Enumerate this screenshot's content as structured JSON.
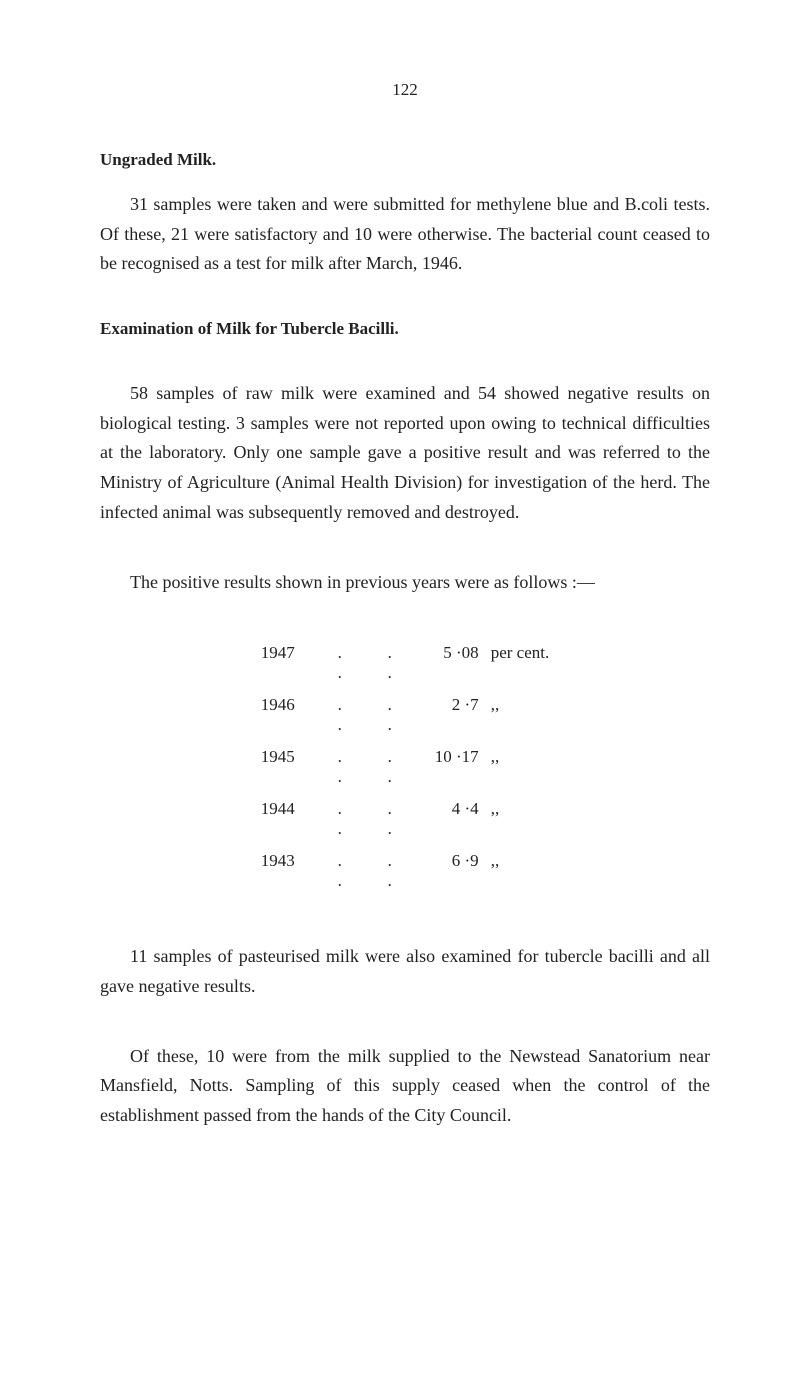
{
  "pageNumber": "122",
  "sections": {
    "ungraded": {
      "heading": "Ungraded Milk.",
      "paragraph": "31 samples were taken and were submitted for methylene blue and B.coli tests. Of these, 21 were satisfactory and 10 were otherwise. The bacterial count ceased to be recognised as a test for milk after March, 1946."
    },
    "examination": {
      "heading": "Examination of Milk for Tubercle Bacilli.",
      "paragraph1": "58 samples of raw milk were examined and 54 showed negative results on biological testing. 3 samples were not reported upon owing to technical difficulties at the laboratory. Only one sample gave a positive result and was referred to the Ministry of Agriculture (Animal Health Division) for investigation of the herd. The infected animal was subsequently removed and destroyed.",
      "paragraph2": "The positive results shown in previous years were as follows :—",
      "table": {
        "rows": [
          {
            "year": "1947",
            "dots1": ". .",
            "dots2": ". .",
            "value": "5 ·08",
            "unit": "per cent."
          },
          {
            "year": "1946",
            "dots1": ". .",
            "dots2": ". .",
            "value": "2 ·7",
            "unit": ",,"
          },
          {
            "year": "1945",
            "dots1": ". .",
            "dots2": ". .",
            "value": "10 ·17",
            "unit": ",,"
          },
          {
            "year": "1944",
            "dots1": ". .",
            "dots2": ". .",
            "value": "4 ·4",
            "unit": ",,"
          },
          {
            "year": "1943",
            "dots1": ". .",
            "dots2": ". .",
            "value": "6 ·9",
            "unit": ",,"
          }
        ]
      },
      "paragraph3": "11 samples of pasteurised milk were also examined for tubercle bacilli and all gave negative results.",
      "paragraph4": "Of these, 10 were from the milk supplied to the Newstead Sanatorium near Mansfield, Notts. Sampling of this supply ceased when the control of the establishment passed from the hands of the City Council."
    }
  }
}
